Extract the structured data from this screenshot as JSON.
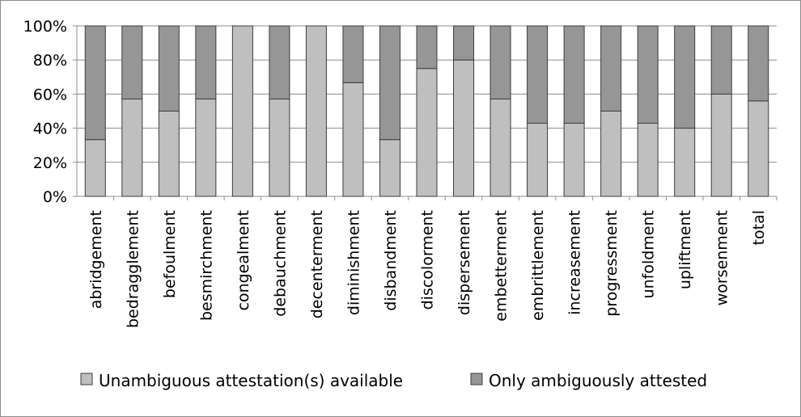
{
  "chart_data": {
    "type": "bar",
    "stacked": true,
    "percent_stacked": true,
    "categories": [
      "abridgement",
      "bedragglement",
      "befoulment",
      "besmirchment",
      "congealment",
      "debauchment",
      "decenterment",
      "diminishment",
      "disbandment",
      "discolorment",
      "dispersement",
      "embetterment",
      "embrittlement",
      "increasement",
      "progressment",
      "unfoldment",
      "upliftment",
      "worsenment",
      "total"
    ],
    "series": [
      {
        "name": "Unambiguous attestation(s) available",
        "color": "#bfbfbf",
        "values": [
          33.3,
          57.1,
          50,
          57.1,
          100,
          57.1,
          100,
          66.7,
          33.3,
          75,
          80,
          57.1,
          42.9,
          42.9,
          50,
          42.9,
          40,
          60,
          56
        ]
      },
      {
        "name": "Only ambiguously attested",
        "color": "#969696",
        "values": [
          66.7,
          42.9,
          50,
          42.9,
          0,
          42.9,
          0,
          33.3,
          66.7,
          25,
          20,
          42.9,
          57.1,
          57.1,
          50,
          57.1,
          60,
          40,
          44
        ]
      }
    ],
    "yticks": [
      "0%",
      "20%",
      "40%",
      "60%",
      "80%",
      "100%"
    ],
    "ylim": [
      0,
      100
    ],
    "grid": true,
    "legend_position": "bottom"
  }
}
